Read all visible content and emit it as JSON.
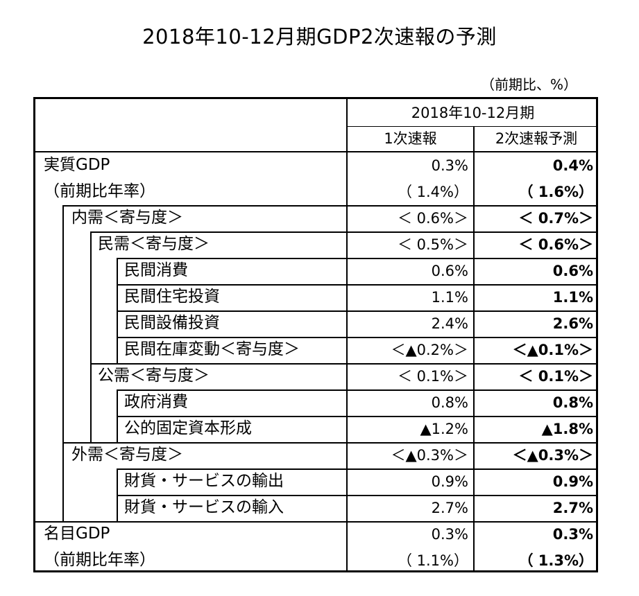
{
  "title": "2018年10-12月期GDP2次速報の予測",
  "unit_note": "（前期比、%）",
  "header": {
    "period": "2018年10-12月期",
    "col1": "1次速報",
    "col2": "2次速報予測"
  },
  "rows": [
    {
      "label": "実質GDP",
      "v1": "0.3%",
      "v2": "0.4%"
    },
    {
      "label": "（前期比年率）",
      "v1": "（ 1.4%）",
      "v2": "（ 1.6%）"
    },
    {
      "label": "内需＜寄与度＞",
      "v1": "＜ 0.6%＞",
      "v2": "＜ 0.7%＞"
    },
    {
      "label": "民需＜寄与度＞",
      "v1": "＜ 0.5%＞",
      "v2": "＜ 0.6%＞"
    },
    {
      "label": "民間消費",
      "v1": "0.6%",
      "v2": "0.6%"
    },
    {
      "label": "民間住宅投資",
      "v1": "1.1%",
      "v2": "1.1%"
    },
    {
      "label": "民間設備投資",
      "v1": "2.4%",
      "v2": "2.6%"
    },
    {
      "label": "民間在庫変動＜寄与度＞",
      "v1": "＜▲0.2%＞",
      "v2": "＜▲0.1%＞"
    },
    {
      "label": "公需＜寄与度＞",
      "v1": "＜ 0.1%＞",
      "v2": "＜ 0.1%＞"
    },
    {
      "label": "政府消費",
      "v1": "0.8%",
      "v2": "0.8%"
    },
    {
      "label": "公的固定資本形成",
      "v1": "▲1.2%",
      "v2": "▲1.8%"
    },
    {
      "label": "外需＜寄与度＞",
      "v1": "＜▲0.3%＞",
      "v2": "＜▲0.3%＞"
    },
    {
      "label": "財貨・サービスの輸出",
      "v1": "0.9%",
      "v2": "0.9%"
    },
    {
      "label": "財貨・サービスの輸入",
      "v1": "2.7%",
      "v2": "2.7%"
    },
    {
      "label": "名目GDP",
      "v1": "0.3%",
      "v2": "0.3%"
    },
    {
      "label": "（前期比年率）",
      "v1": "（ 1.1%）",
      "v2": "（ 1.3%）"
    }
  ]
}
